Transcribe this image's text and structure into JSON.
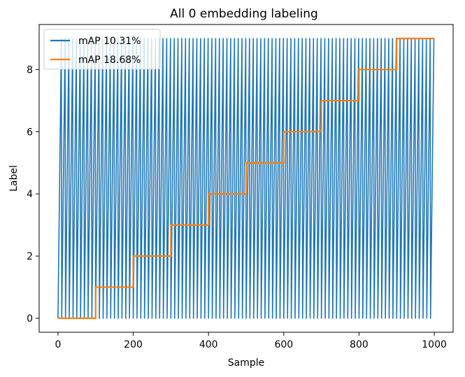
{
  "chart_data": {
    "type": "line",
    "title": "All 0 embedding labeling",
    "xlabel": "Sample",
    "ylabel": "Label",
    "xlim": [
      -50,
      1050
    ],
    "ylim": [
      -0.45,
      9.45
    ],
    "xticks": [
      0,
      200,
      400,
      600,
      800,
      1000
    ],
    "yticks": [
      0,
      2,
      4,
      6,
      8
    ],
    "grid": false,
    "legend_position": "upper left",
    "series": [
      {
        "name": "mAP 10.31%",
        "color": "#1f77b4",
        "pattern": "label = sample mod 10 (cycles 0..9 repeatedly)",
        "x_start": 0,
        "x_end": 1000,
        "period": 10
      },
      {
        "name": "mAP 18.68%",
        "color": "#ff7f0e",
        "pattern": "step: label = floor(sample / 100)",
        "x": [
          0,
          100,
          100,
          200,
          200,
          300,
          300,
          400,
          400,
          500,
          500,
          600,
          600,
          700,
          700,
          800,
          800,
          900,
          900,
          1000
        ],
        "y": [
          0,
          0,
          1,
          1,
          2,
          2,
          3,
          3,
          4,
          4,
          5,
          5,
          6,
          6,
          7,
          7,
          8,
          8,
          9,
          9
        ]
      }
    ]
  }
}
